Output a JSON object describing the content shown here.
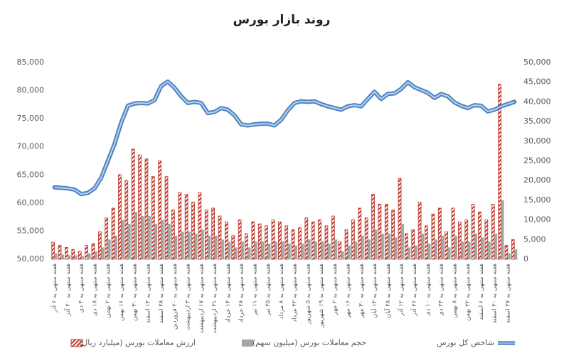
{
  "chart_data": {
    "type": "bar-line",
    "title": "روند بازار بورس",
    "categories": [
      "هفته منتهی به ۶ آذر",
      null,
      "هفته منتهی به ۲۰ آذر",
      null,
      "هفته منتهی به ۴ دی",
      null,
      "هفته منتهی به ۱۸ دی",
      null,
      "هفته منتهی به ۲ بهمن",
      null,
      "هفته منتهی به ۱۶ بهمن",
      null,
      "هفته منتهی به ۳۰ بهمن",
      null,
      "هفته منتهی به ۱۴ اسفند",
      null,
      "هفته منتهی به ۲۸ اسفند",
      null,
      "هفته منتهی به ۲۰ فروردین",
      null,
      "هفته منتهی به ۳ اردیبهشت",
      null,
      "هفته منتهی به ۱۷ اردیبهشت",
      null,
      "هفته منتهی به ۳۱ اردیبهشت",
      null,
      "هفته منتهی به ۱۴ خرداد",
      null,
      "هفته منتهی به ۲۸ خرداد",
      null,
      "هفته منتهی به ۱۱ تیر",
      null,
      "هفته منتهی به ۲۵ تیر",
      null,
      "هفته منتهی به ۸ مرداد",
      null,
      "هفته منتهی به ۲۲ مرداد",
      null,
      "هفته منتهی به ۵ شهریور",
      null,
      "هفته منتهی به ۱۹ شهریور",
      null,
      "هفته منتهی به ۲ مهر",
      null,
      "هفته منتهی به ۱۶ مهر",
      null,
      "هفته منتهی به ۳۰ مهر",
      null,
      "هفته منتهی به ۱۴ آبان",
      null,
      "هفته منتهی به ۲۸ آبان",
      null,
      "هفته منتهی به ۱۲ آذر",
      null,
      "هفته منتهی به ۲۶ آذر",
      null,
      "هفته منتهی به ۱۰ دی",
      null,
      "هفته منتهی به ۲۴ دی",
      null,
      "هفته منتهی به ۸ بهمن",
      null,
      "هفته منتهی به ۲۲ بهمن",
      null,
      "هفته منتهی به ۶ اسفند",
      null,
      "هفته منتهی به ۲۰ اسفند",
      null,
      "هفته منتهی به ۲۷ اسفند",
      null
    ],
    "series": [
      {
        "name": "ارزش معاملات بورس (میلیارد ریال)",
        "kind": "bar",
        "color": "#c0392b",
        "axis": "y2",
        "values": [
          4300,
          3500,
          3000,
          2500,
          2000,
          3500,
          4000,
          7000,
          10500,
          13000,
          21500,
          20000,
          28000,
          26500,
          25500,
          21000,
          25000,
          21000,
          12500,
          17000,
          16500,
          14500,
          17000,
          12500,
          13000,
          11000,
          9500,
          6000,
          10000,
          6500,
          9500,
          9000,
          8500,
          10000,
          9500,
          8500,
          7500,
          8000,
          10500,
          9500,
          10000,
          8500,
          11000,
          4500,
          7500,
          10000,
          13000,
          10500,
          16500,
          14000,
          14000,
          12500,
          20500,
          6500,
          7500,
          14500,
          8500,
          11500,
          13000,
          7000,
          13000,
          9500,
          10000,
          14000,
          12000,
          10000,
          14000,
          44500,
          3500,
          5000
        ]
      },
      {
        "name": "حجم معاملات بورس (میلیون سهم)",
        "kind": "bar",
        "color": "#a6a6a6",
        "axis": "y2",
        "values": [
          1500,
          1200,
          1000,
          1000,
          800,
          1500,
          2000,
          3000,
          5000,
          6000,
          10000,
          9000,
          12000,
          11000,
          11000,
          9000,
          10000,
          9000,
          6000,
          7000,
          7000,
          6500,
          7500,
          6000,
          6000,
          5000,
          4500,
          3000,
          4500,
          3000,
          4500,
          4500,
          4000,
          4500,
          4500,
          4000,
          3500,
          4000,
          5000,
          4500,
          4500,
          4000,
          5000,
          2000,
          3500,
          4500,
          6000,
          5000,
          7500,
          6500,
          6500,
          5500,
          9000,
          3000,
          3500,
          6500,
          4000,
          5000,
          6000,
          3000,
          6000,
          4500,
          4500,
          6500,
          5500,
          4500,
          6500,
          15000,
          1500,
          2500
        ]
      },
      {
        "name": "شاخص کل بورس",
        "kind": "line",
        "color": "#2e6db4",
        "values": [
          62800,
          62700,
          62600,
          62400,
          61600,
          61800,
          62600,
          64500,
          67500,
          70500,
          74300,
          77300,
          77700,
          77800,
          77700,
          78300,
          80800,
          81600,
          80500,
          79000,
          77800,
          78000,
          77800,
          76000,
          76200,
          76900,
          76600,
          75600,
          74000,
          73800,
          74000,
          74100,
          74100,
          73800,
          74800,
          76500,
          77800,
          78100,
          78000,
          78100,
          77600,
          77200,
          76900,
          76600,
          77200,
          77400,
          77200,
          78500,
          79800,
          78500,
          79400,
          79500,
          80300,
          81500,
          80600,
          80100,
          79600,
          78700,
          79400,
          79000,
          77900,
          77300,
          76900,
          77400,
          77300,
          76300,
          76600,
          77200,
          77600,
          78000
        ]
      }
    ],
    "ylim": [
      50000,
      85000
    ],
    "yticks": [
      {
        "value": 50000,
        "label": "50,000"
      },
      {
        "value": 55000,
        "label": "55,000"
      },
      {
        "value": 60000,
        "label": "60,000"
      },
      {
        "value": 65000,
        "label": "65,000"
      },
      {
        "value": 70000,
        "label": "70,000"
      },
      {
        "value": 75000,
        "label": "75,000"
      },
      {
        "value": 80000,
        "label": "80,000"
      },
      {
        "value": 85000,
        "label": "85,000"
      }
    ],
    "y2lim": [
      0,
      50000
    ],
    "y2ticks": [
      0,
      {
        "value": 5000,
        "label": "5,000"
      },
      {
        "value": 10000,
        "label": "10,000"
      },
      {
        "value": 15000,
        "label": "15,000"
      },
      {
        "value": 20000,
        "label": "20,000"
      },
      {
        "value": 25000,
        "label": "25,000"
      },
      {
        "value": 30000,
        "label": "30,000"
      },
      {
        "value": 35000,
        "label": "35,000"
      },
      {
        "value": 40000,
        "label": "40,000"
      },
      {
        "value": 45000,
        "label": "45,000"
      },
      {
        "value": 50000,
        "label": "50,000"
      }
    ],
    "legend": "bottom"
  }
}
